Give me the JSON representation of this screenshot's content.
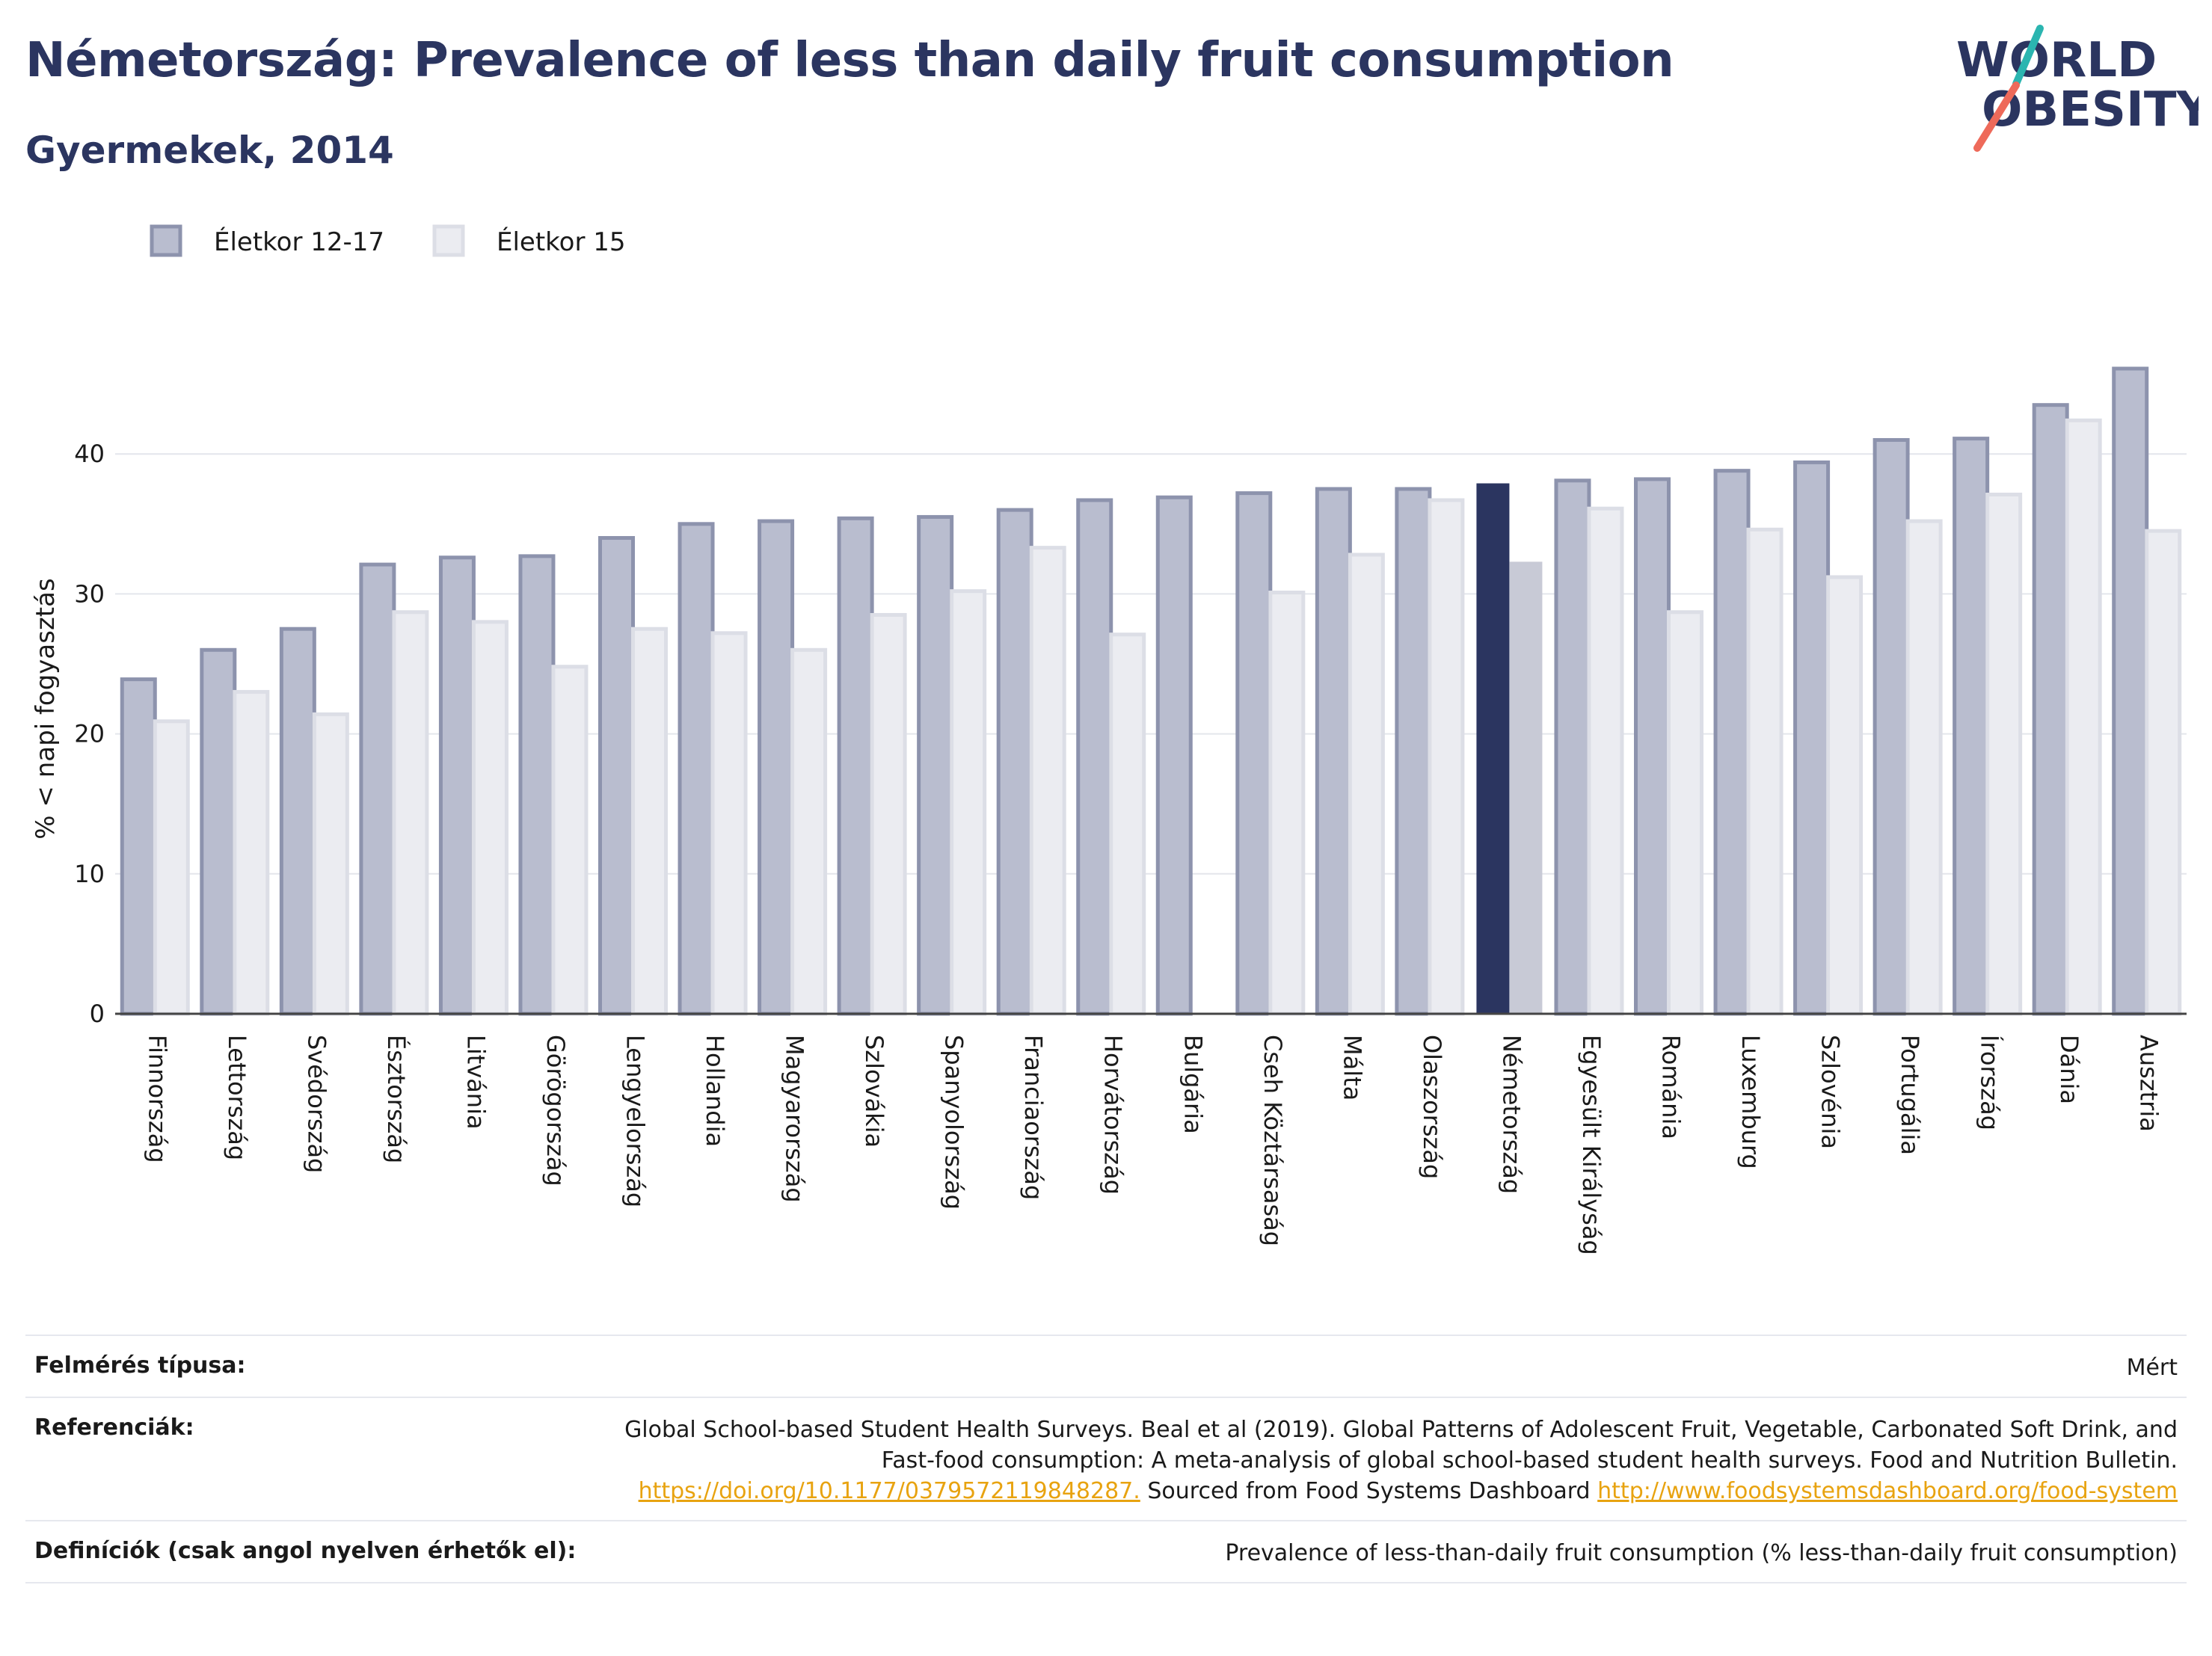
{
  "header": {
    "title": "Németország: Prevalence of less than daily fruit consumption",
    "subtitle": "Gyermekek, 2014"
  },
  "logo": {
    "line1": "WORLD",
    "line2": "OBESITY"
  },
  "chart_data": {
    "type": "bar",
    "ylabel": "% < napi fogyasztás",
    "ylim": [
      0,
      50
    ],
    "yticks": [
      0,
      10,
      20,
      30,
      40
    ],
    "grid": true,
    "legend_position": "top-left",
    "highlight_category": "Németország",
    "categories": [
      "Finnország",
      "Lettország",
      "Svédország",
      "Észtország",
      "Litvánia",
      "Görögország",
      "Lengyelország",
      "Hollandia",
      "Magyarország",
      "Szlovákia",
      "Spanyolország",
      "Franciaország",
      "Horvátország",
      "Bulgária",
      "Cseh Köztársaság",
      "Málta",
      "Olaszország",
      "Németország",
      "Egyesült Királyság",
      "Románia",
      "Luxemburg",
      "Szlovénia",
      "Portugália",
      "Írország",
      "Dánia",
      "Ausztria"
    ],
    "series": [
      {
        "name": "Életkor 12-17",
        "color": "#b9bdcf",
        "highlight_color": "#2b3560",
        "values": [
          23.9,
          26.0,
          27.5,
          32.1,
          32.6,
          32.7,
          34.0,
          35.0,
          35.2,
          35.4,
          35.5,
          36.0,
          36.7,
          36.9,
          37.2,
          37.5,
          37.5,
          37.9,
          38.1,
          38.2,
          38.8,
          39.4,
          41.0,
          41.1,
          43.5,
          46.1
        ]
      },
      {
        "name": "Életkor 15",
        "color": "#ebecf1",
        "highlight_color": "#c8cad6",
        "values": [
          20.9,
          23.0,
          21.4,
          28.7,
          28.0,
          24.8,
          27.5,
          27.2,
          26.0,
          28.5,
          30.2,
          33.3,
          27.1,
          null,
          30.1,
          32.8,
          36.7,
          32.3,
          36.1,
          28.7,
          34.6,
          31.2,
          35.2,
          37.1,
          42.4,
          34.5
        ]
      }
    ]
  },
  "footer": {
    "survey_label": "Felmérés típusa:",
    "survey_value": "Mért",
    "refs_label": "Referenciák:",
    "refs_text_1": "Global School-based Student Health Surveys. Beal et al (2019). Global Patterns of Adolescent Fruit, Vegetable, Carbonated Soft Drink, and Fast-food consumption: A meta-analysis of global school-based student health surveys. Food and Nutrition Bulletin.",
    "refs_link_1": "https://doi.org/10.1177/0379572119848287.",
    "refs_text_2": "Sourced from Food Systems Dashboard",
    "refs_link_2": "http://www.foodsystemsdashboard.org/food-system",
    "defs_label": "Definíciók (csak angol nyelven érhetők el):",
    "defs_value": "Prevalence of less-than-daily fruit consumption (% less-than-daily fruit consumption)"
  }
}
